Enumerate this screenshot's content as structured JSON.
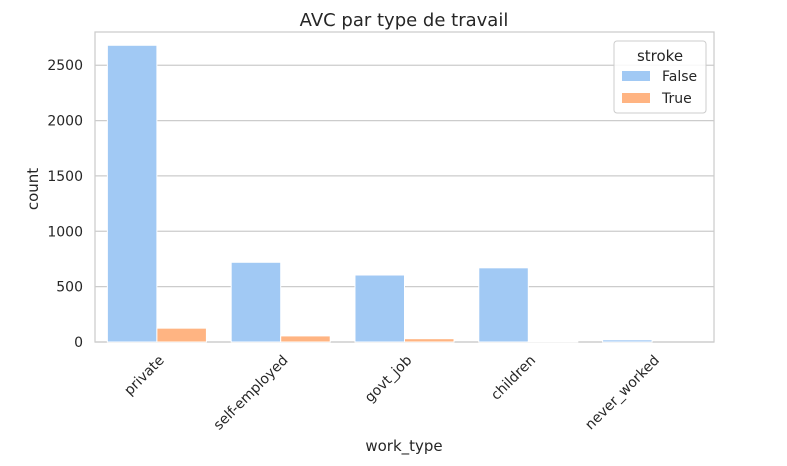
{
  "chart_data": {
    "type": "bar",
    "title": "AVC par type de travail",
    "xlabel": "work_type",
    "ylabel": "count",
    "categories": [
      "private",
      "self-employed",
      "govt_job",
      "children",
      "never_worked"
    ],
    "series": [
      {
        "name": "False",
        "values": [
          2680,
          720,
          605,
          670,
          20
        ],
        "color": "#a1c9f4"
      },
      {
        "name": "True",
        "values": [
          125,
          55,
          30,
          5,
          0
        ],
        "color": "#ffb482"
      }
    ],
    "ylim": [
      0,
      2800
    ],
    "yticks": [
      0,
      500,
      1000,
      1500,
      2000,
      2500
    ],
    "grid": "horizontal",
    "legend": {
      "title": "stroke",
      "placement": "top-right"
    }
  }
}
